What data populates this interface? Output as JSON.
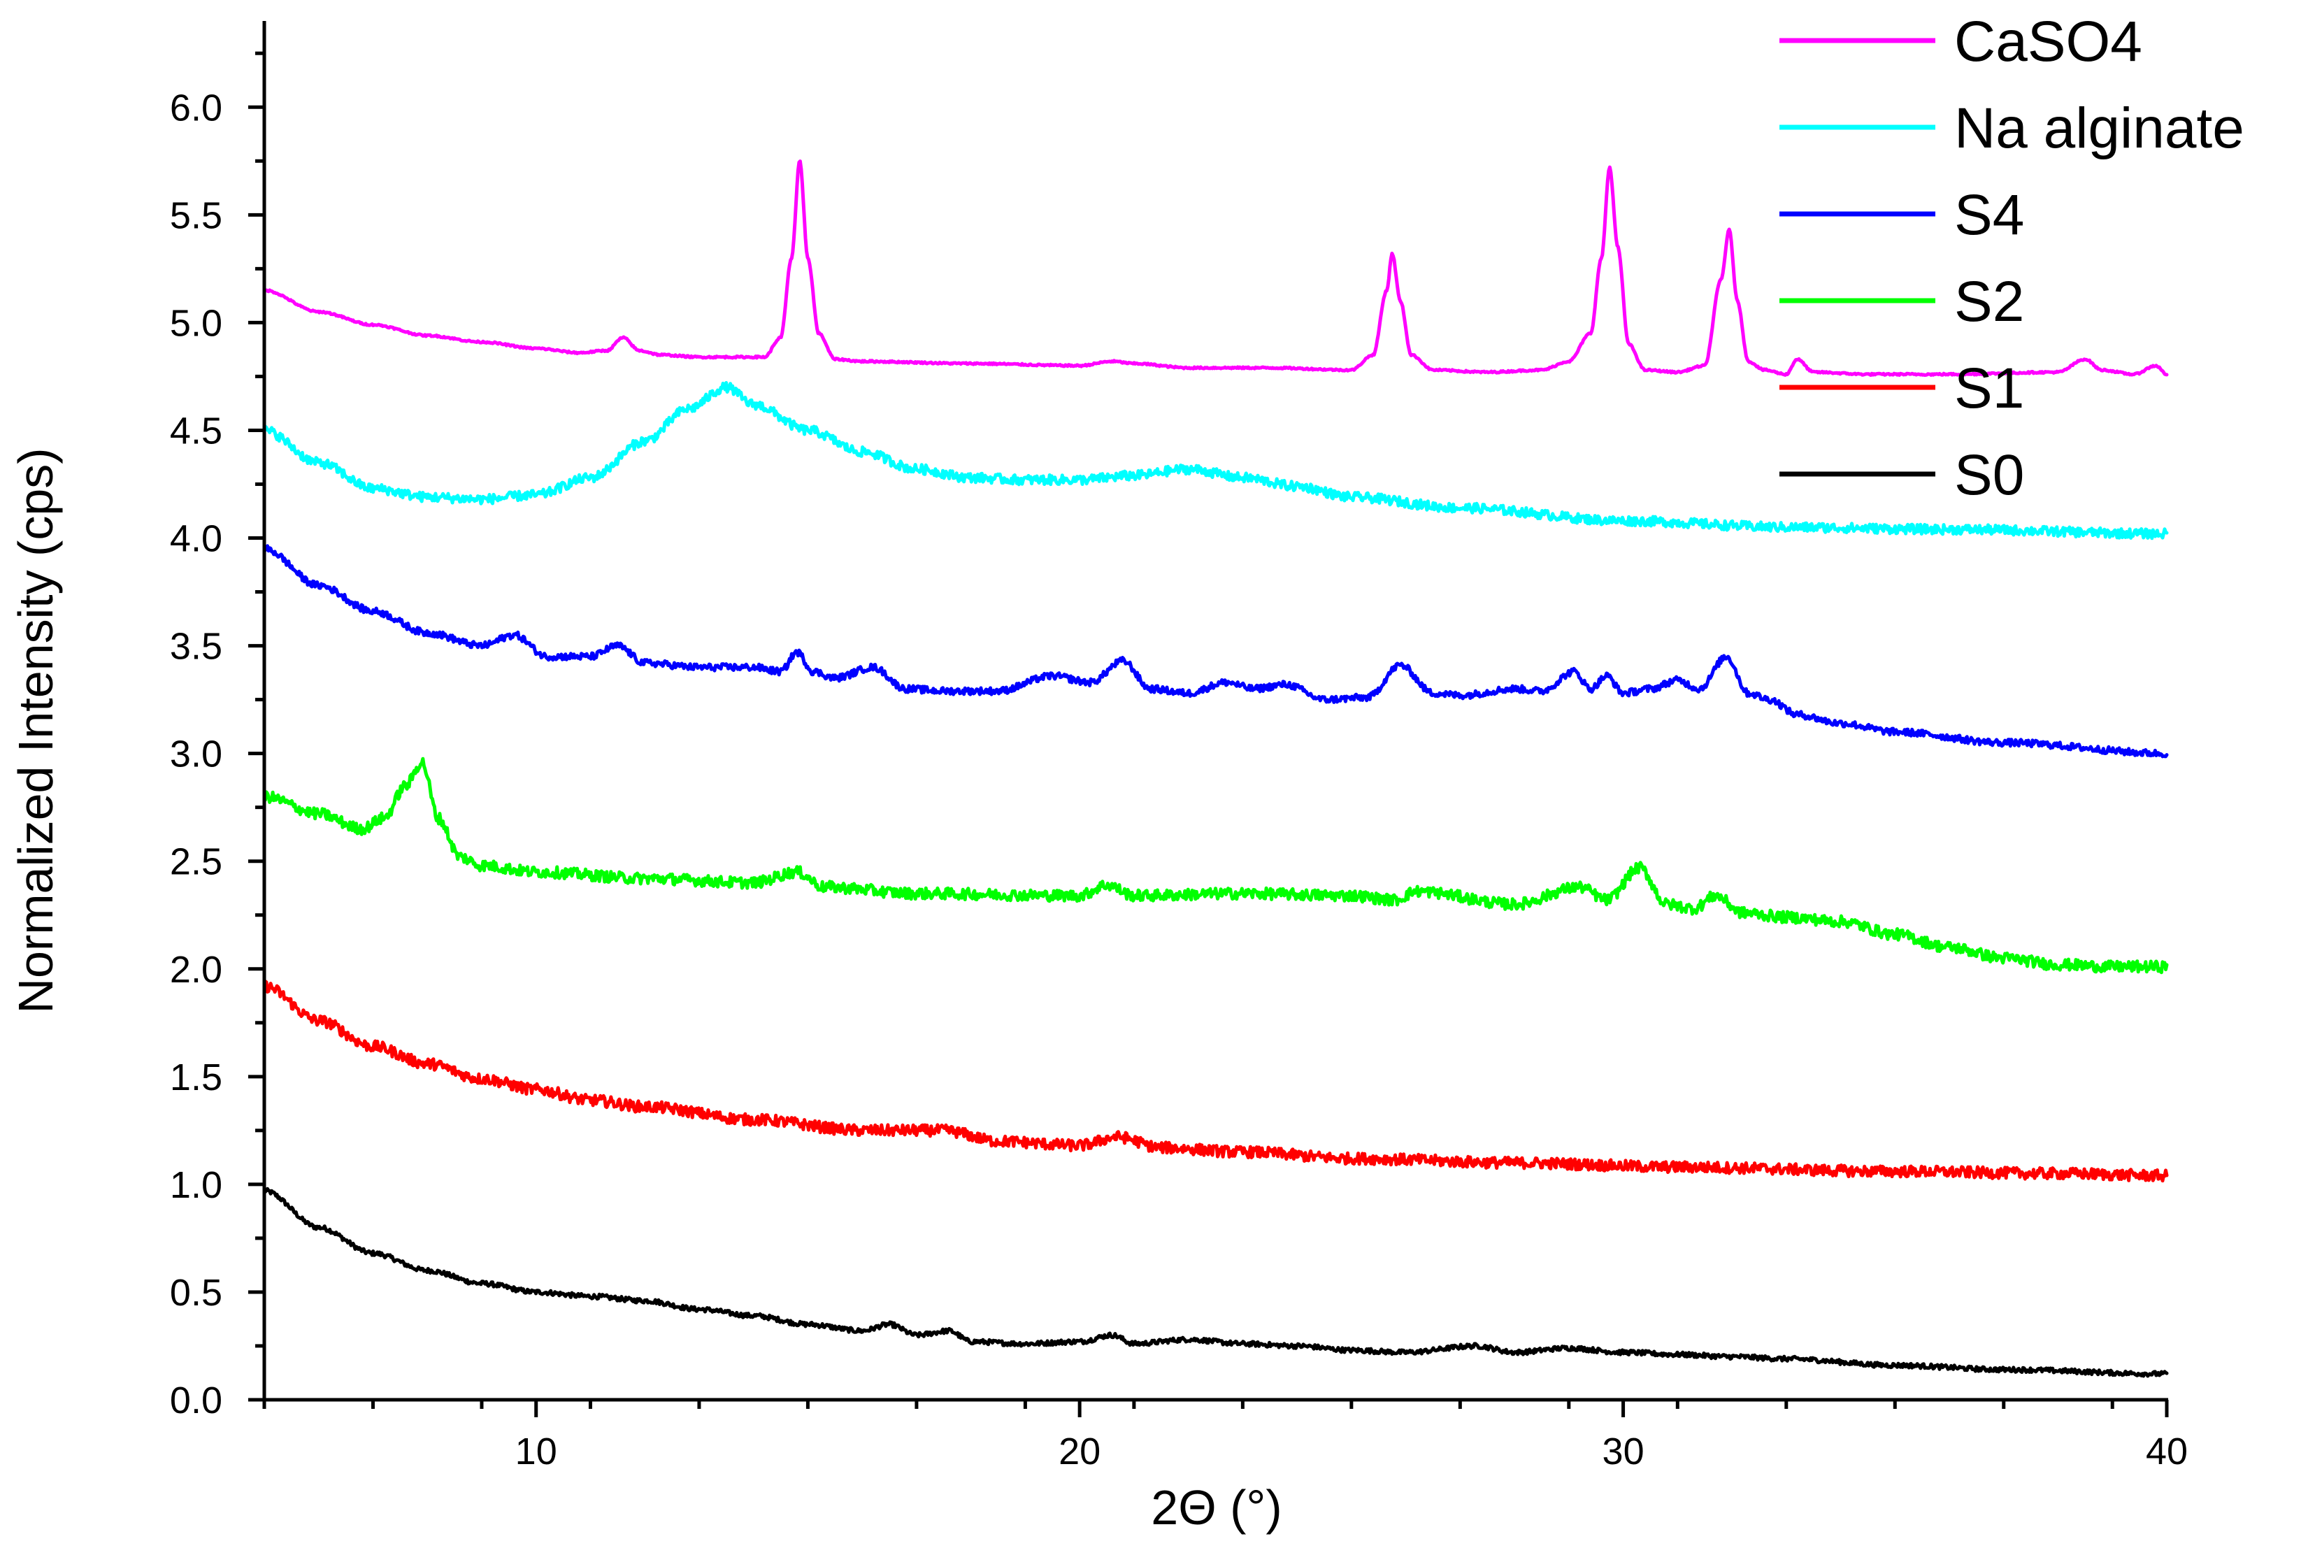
{
  "chart_data": {
    "type": "line",
    "title": "",
    "xlabel": "2Θ (°)",
    "ylabel": "Normalized Intensity (cps)",
    "xlim": [
      5,
      40
    ],
    "ylim": [
      0,
      6.4
    ],
    "x_ticks": [
      10,
      20,
      30,
      40
    ],
    "y_ticks": [
      0.0,
      0.5,
      1.0,
      1.5,
      2.0,
      2.5,
      3.0,
      3.5,
      4.0,
      4.5,
      5.0,
      5.5,
      6.0
    ],
    "y_tick_labels": [
      "0.0",
      "0.5",
      "1.0",
      "1.5",
      "2.0",
      "2.5",
      "3.0",
      "3.5",
      "4.0",
      "4.5",
      "5.0",
      "5.5",
      "6.0"
    ],
    "x_tick_labels": [
      "10",
      "20",
      "30",
      "40"
    ],
    "grid": false,
    "legend_position": "top-right",
    "series": [
      {
        "name": "CaSO4",
        "color": "#ff00ff",
        "noise": 0.004,
        "x": [
          5.0,
          6.0,
          7.0,
          8.0,
          9.0,
          10.0,
          10.8,
          11.3,
          11.6,
          11.9,
          12.3,
          13.0,
          14.2,
          14.5,
          14.7,
          14.85,
          15.0,
          15.2,
          15.5,
          16.0,
          18.0,
          20.0,
          20.6,
          21.0,
          22.0,
          23.5,
          25.0,
          25.4,
          25.65,
          25.75,
          25.9,
          26.1,
          26.5,
          27.5,
          28.5,
          29.0,
          29.4,
          29.6,
          29.75,
          29.9,
          30.1,
          30.4,
          31.0,
          31.5,
          31.8,
          31.95,
          32.1,
          32.3,
          32.6,
          33.0,
          33.2,
          33.5,
          34.5,
          36.0,
          38.0,
          38.5,
          38.8,
          39.4,
          39.8,
          40.0
        ],
        "y": [
          5.15,
          5.05,
          4.99,
          4.94,
          4.91,
          4.88,
          4.86,
          4.87,
          4.93,
          4.87,
          4.85,
          4.84,
          4.84,
          4.93,
          5.3,
          5.75,
          5.3,
          4.95,
          4.83,
          4.82,
          4.81,
          4.8,
          4.82,
          4.81,
          4.79,
          4.79,
          4.78,
          4.85,
          5.15,
          5.32,
          5.1,
          4.85,
          4.78,
          4.77,
          4.78,
          4.82,
          4.95,
          5.3,
          5.72,
          5.35,
          4.9,
          4.78,
          4.77,
          4.8,
          5.2,
          5.43,
          5.1,
          4.82,
          4.78,
          4.76,
          4.83,
          4.77,
          4.76,
          4.76,
          4.77,
          4.83,
          4.78,
          4.76,
          4.8,
          4.76
        ]
      },
      {
        "name": "Na alginate",
        "color": "#00ffff",
        "noise": 0.022,
        "x": [
          5.0,
          6.0,
          7.0,
          8.0,
          9.0,
          10.0,
          11.0,
          12.0,
          12.8,
          13.5,
          14.0,
          15.0,
          16.0,
          17.0,
          18.0,
          19.0,
          20.0,
          21.0,
          22.0,
          23.0,
          24.0,
          25.0,
          27.0,
          30.0,
          33.0,
          36.0,
          40.0
        ],
        "y": [
          4.5,
          4.35,
          4.23,
          4.19,
          4.18,
          4.2,
          4.28,
          4.45,
          4.6,
          4.7,
          4.62,
          4.5,
          4.4,
          4.32,
          4.28,
          4.27,
          4.27,
          4.29,
          4.32,
          4.28,
          4.24,
          4.19,
          4.14,
          4.08,
          4.05,
          4.04,
          4.02
        ]
      },
      {
        "name": "S4",
        "color": "#0000ff",
        "noise": 0.016,
        "x": [
          5.0,
          6.0,
          7.0,
          8.0,
          9.0,
          9.6,
          10.2,
          11.0,
          11.5,
          12.0,
          13.0,
          14.0,
          14.5,
          14.8,
          15.1,
          15.5,
          16.2,
          16.8,
          17.5,
          18.5,
          19.5,
          20.2,
          20.8,
          21.3,
          22.0,
          22.7,
          23.2,
          23.8,
          24.5,
          25.3,
          25.9,
          26.5,
          27.0,
          28.0,
          28.5,
          29.1,
          29.4,
          29.7,
          30.0,
          30.5,
          31.0,
          31.4,
          31.9,
          32.3,
          32.7,
          33.2,
          34.0,
          35.0,
          37.0,
          40.0
        ],
        "y": [
          3.95,
          3.78,
          3.66,
          3.56,
          3.5,
          3.55,
          3.45,
          3.45,
          3.5,
          3.42,
          3.4,
          3.4,
          3.38,
          3.47,
          3.38,
          3.35,
          3.4,
          3.3,
          3.29,
          3.29,
          3.36,
          3.33,
          3.43,
          3.3,
          3.28,
          3.33,
          3.3,
          3.32,
          3.25,
          3.26,
          3.41,
          3.28,
          3.27,
          3.3,
          3.29,
          3.38,
          3.3,
          3.36,
          3.28,
          3.3,
          3.34,
          3.3,
          3.45,
          3.28,
          3.25,
          3.18,
          3.14,
          3.1,
          3.05,
          3.0
        ]
      },
      {
        "name": "S2",
        "color": "#00ff00",
        "noise": 0.026,
        "x": [
          5.0,
          6.0,
          6.8,
          7.2,
          7.6,
          7.9,
          8.2,
          8.6,
          9.0,
          10.0,
          12.0,
          14.0,
          14.8,
          15.3,
          17.0,
          20.0,
          20.5,
          21.0,
          23.0,
          25.0,
          25.8,
          26.2,
          28.0,
          29.2,
          29.7,
          30.3,
          30.8,
          31.3,
          31.7,
          32.2,
          33.0,
          34.0,
          35.0,
          36.0,
          37.0,
          38.0,
          39.0,
          40.0
        ],
        "y": [
          2.8,
          2.72,
          2.65,
          2.7,
          2.85,
          2.96,
          2.7,
          2.52,
          2.48,
          2.45,
          2.42,
          2.4,
          2.45,
          2.38,
          2.35,
          2.34,
          2.39,
          2.34,
          2.35,
          2.34,
          2.32,
          2.36,
          2.3,
          2.38,
          2.32,
          2.47,
          2.3,
          2.28,
          2.34,
          2.26,
          2.24,
          2.22,
          2.16,
          2.1,
          2.05,
          2.02,
          2.01,
          2.01
        ]
      },
      {
        "name": "S1",
        "color": "#ff0000",
        "noise": 0.026,
        "x": [
          5.0,
          6.0,
          7.0,
          8.0,
          9.0,
          10.0,
          11.0,
          12.0,
          14.0,
          16.0,
          17.5,
          18.5,
          20.0,
          20.7,
          21.5,
          23.0,
          25.0,
          28.0,
          31.0,
          35.0,
          38.0,
          40.0
        ],
        "y": [
          1.92,
          1.76,
          1.64,
          1.56,
          1.49,
          1.44,
          1.39,
          1.36,
          1.3,
          1.25,
          1.25,
          1.2,
          1.18,
          1.22,
          1.17,
          1.15,
          1.12,
          1.1,
          1.08,
          1.06,
          1.05,
          1.04
        ]
      },
      {
        "name": "S0",
        "color": "#000000",
        "noise": 0.011,
        "x": [
          5.0,
          6.0,
          7.0,
          8.0,
          9.0,
          10.0,
          11.0,
          12.0,
          13.0,
          14.0,
          15.0,
          16.0,
          16.5,
          17.0,
          17.6,
          18.0,
          19.0,
          20.0,
          20.6,
          21.0,
          22.0,
          23.0,
          24.0,
          25.0,
          26.0,
          27.3,
          28.0,
          29.0,
          30.0,
          31.0,
          32.0,
          33.0,
          35.0,
          37.0,
          40.0
        ],
        "y": [
          0.97,
          0.8,
          0.68,
          0.6,
          0.54,
          0.5,
          0.48,
          0.46,
          0.42,
          0.39,
          0.35,
          0.32,
          0.35,
          0.3,
          0.32,
          0.27,
          0.26,
          0.27,
          0.3,
          0.26,
          0.28,
          0.26,
          0.25,
          0.23,
          0.22,
          0.25,
          0.22,
          0.24,
          0.22,
          0.21,
          0.2,
          0.19,
          0.16,
          0.14,
          0.12
        ]
      }
    ]
  }
}
